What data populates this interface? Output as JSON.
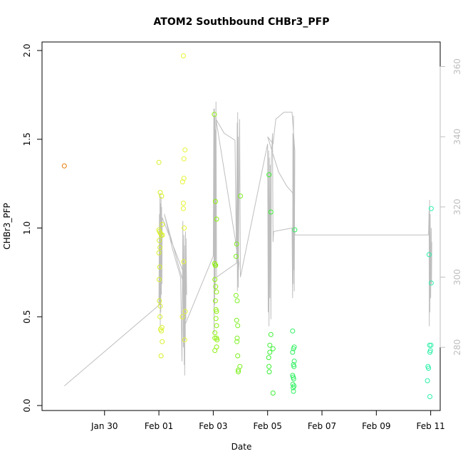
{
  "chart_data": {
    "type": "scatter",
    "title": "ATOM2 Southbound CHBr3_PFP",
    "xlabel": "Date",
    "ylabel": "CHBr3_PFP",
    "x_units": "days",
    "x_origin_label": "2017-01-28",
    "xlim": [
      -0.3,
      14.35
    ],
    "ylim": [
      0.0,
      2.0
    ],
    "y2lim": [
      262,
      367
    ],
    "x_ticks": [
      {
        "x": 2,
        "label": "Jan 30"
      },
      {
        "x": 4,
        "label": "Feb 01"
      },
      {
        "x": 6,
        "label": "Feb 03"
      },
      {
        "x": 8,
        "label": "Feb 05"
      },
      {
        "x": 10,
        "label": "Feb 07"
      },
      {
        "x": 12,
        "label": "Feb 09"
      },
      {
        "x": 14,
        "label": "Feb 11"
      }
    ],
    "y_ticks": [
      {
        "y": 0.0,
        "label": "0.0"
      },
      {
        "y": 0.5,
        "label": "0.5"
      },
      {
        "y": 1.0,
        "label": "1.0"
      },
      {
        "y": 1.5,
        "label": "1.5"
      },
      {
        "y": 2.0,
        "label": "2.0"
      }
    ],
    "y2_ticks": [
      {
        "y": 280,
        "label": "280"
      },
      {
        "y": 300,
        "label": "300"
      },
      {
        "y": 320,
        "label": "320"
      },
      {
        "y": 340,
        "label": "340"
      },
      {
        "y": 360,
        "label": "360"
      }
    ],
    "grid": false,
    "legend": "none",
    "points": [
      {
        "x": 0.52,
        "y": 1.35,
        "color": "#e87a00"
      },
      {
        "x": 4.0,
        "y": 1.37,
        "color": "#d8f028"
      },
      {
        "x": 4.05,
        "y": 1.2,
        "color": "#d8f028"
      },
      {
        "x": 4.1,
        "y": 1.18,
        "color": "#d8f028"
      },
      {
        "x": 4.12,
        "y": 1.02,
        "color": "#d8f028"
      },
      {
        "x": 4.0,
        "y": 0.99,
        "color": "#d8f028"
      },
      {
        "x": 4.02,
        "y": 0.98,
        "color": "#d8f028"
      },
      {
        "x": 4.06,
        "y": 0.97,
        "color": "#d8f028"
      },
      {
        "x": 4.09,
        "y": 0.96,
        "color": "#d8f028"
      },
      {
        "x": 4.13,
        "y": 0.96,
        "color": "#d8f028"
      },
      {
        "x": 4.01,
        "y": 0.93,
        "color": "#d8f028"
      },
      {
        "x": 4.04,
        "y": 0.89,
        "color": "#d8f028"
      },
      {
        "x": 4.0,
        "y": 0.86,
        "color": "#d8f028"
      },
      {
        "x": 4.03,
        "y": 0.78,
        "color": "#d8f028"
      },
      {
        "x": 4.01,
        "y": 0.71,
        "color": "#d8f028"
      },
      {
        "x": 4.02,
        "y": 0.59,
        "color": "#d8f028"
      },
      {
        "x": 4.05,
        "y": 0.56,
        "color": "#d8f028"
      },
      {
        "x": 4.04,
        "y": 0.5,
        "color": "#d8f028"
      },
      {
        "x": 4.11,
        "y": 0.44,
        "color": "#d8f028"
      },
      {
        "x": 4.06,
        "y": 0.43,
        "color": "#d8f028"
      },
      {
        "x": 4.09,
        "y": 0.42,
        "color": "#d8f028"
      },
      {
        "x": 4.12,
        "y": 0.36,
        "color": "#d8f028"
      },
      {
        "x": 4.08,
        "y": 0.28,
        "color": "#d8f028"
      },
      {
        "x": 4.9,
        "y": 1.97,
        "color": "#e6f432"
      },
      {
        "x": 4.96,
        "y": 1.44,
        "color": "#e6f432"
      },
      {
        "x": 4.92,
        "y": 1.39,
        "color": "#e6f432"
      },
      {
        "x": 4.92,
        "y": 1.28,
        "color": "#e6f432"
      },
      {
        "x": 4.87,
        "y": 1.26,
        "color": "#e6f432"
      },
      {
        "x": 4.9,
        "y": 1.14,
        "color": "#e6f432"
      },
      {
        "x": 4.9,
        "y": 1.11,
        "color": "#e6f432"
      },
      {
        "x": 4.93,
        "y": 1.0,
        "color": "#e6f432"
      },
      {
        "x": 4.91,
        "y": 0.81,
        "color": "#e6f432"
      },
      {
        "x": 4.97,
        "y": 0.53,
        "color": "#e6f432"
      },
      {
        "x": 4.86,
        "y": 0.5,
        "color": "#e6f432"
      },
      {
        "x": 4.95,
        "y": 0.37,
        "color": "#e6f432"
      },
      {
        "x": 6.04,
        "y": 1.64,
        "color": "#8cf00a"
      },
      {
        "x": 6.08,
        "y": 1.15,
        "color": "#8cf00a"
      },
      {
        "x": 6.12,
        "y": 1.05,
        "color": "#8cf00a"
      },
      {
        "x": 6.05,
        "y": 0.8,
        "color": "#8cf00a"
      },
      {
        "x": 6.07,
        "y": 0.79,
        "color": "#8cf00a"
      },
      {
        "x": 6.09,
        "y": 0.79,
        "color": "#8cf00a"
      },
      {
        "x": 6.06,
        "y": 0.71,
        "color": "#8cf00a"
      },
      {
        "x": 6.09,
        "y": 0.67,
        "color": "#8cf00a"
      },
      {
        "x": 6.12,
        "y": 0.64,
        "color": "#8cf00a"
      },
      {
        "x": 6.08,
        "y": 0.59,
        "color": "#8cf00a"
      },
      {
        "x": 6.1,
        "y": 0.54,
        "color": "#8cf00a"
      },
      {
        "x": 6.12,
        "y": 0.53,
        "color": "#8cf00a"
      },
      {
        "x": 6.1,
        "y": 0.49,
        "color": "#8cf00a"
      },
      {
        "x": 6.12,
        "y": 0.45,
        "color": "#8cf00a"
      },
      {
        "x": 6.06,
        "y": 0.41,
        "color": "#8cf00a"
      },
      {
        "x": 6.12,
        "y": 0.38,
        "color": "#8cf00a"
      },
      {
        "x": 6.06,
        "y": 0.38,
        "color": "#8cf00a"
      },
      {
        "x": 6.14,
        "y": 0.37,
        "color": "#8cf00a"
      },
      {
        "x": 6.12,
        "y": 0.33,
        "color": "#8cf00a"
      },
      {
        "x": 6.06,
        "y": 0.31,
        "color": "#8cf00a"
      },
      {
        "x": 7.0,
        "y": 1.18,
        "color": "#7cf020"
      },
      {
        "x": 6.86,
        "y": 0.91,
        "color": "#7cf020"
      },
      {
        "x": 6.84,
        "y": 0.84,
        "color": "#7cf020"
      },
      {
        "x": 6.84,
        "y": 0.62,
        "color": "#7cf020"
      },
      {
        "x": 6.88,
        "y": 0.59,
        "color": "#7cf020"
      },
      {
        "x": 6.86,
        "y": 0.48,
        "color": "#7cf020"
      },
      {
        "x": 6.9,
        "y": 0.45,
        "color": "#7cf020"
      },
      {
        "x": 6.88,
        "y": 0.38,
        "color": "#7cf020"
      },
      {
        "x": 6.87,
        "y": 0.36,
        "color": "#7cf020"
      },
      {
        "x": 6.9,
        "y": 0.28,
        "color": "#7cf020"
      },
      {
        "x": 6.98,
        "y": 0.22,
        "color": "#7cf020"
      },
      {
        "x": 6.92,
        "y": 0.2,
        "color": "#7cf020"
      },
      {
        "x": 6.92,
        "y": 0.19,
        "color": "#7cf020"
      },
      {
        "x": 8.05,
        "y": 1.3,
        "color": "#3cf034"
      },
      {
        "x": 8.12,
        "y": 1.09,
        "color": "#3cf034"
      },
      {
        "x": 8.12,
        "y": 0.4,
        "color": "#3cf034"
      },
      {
        "x": 8.08,
        "y": 0.34,
        "color": "#3cf034"
      },
      {
        "x": 8.2,
        "y": 0.32,
        "color": "#3cf034"
      },
      {
        "x": 8.08,
        "y": 0.3,
        "color": "#3cf034"
      },
      {
        "x": 8.04,
        "y": 0.27,
        "color": "#3cf034"
      },
      {
        "x": 8.05,
        "y": 0.22,
        "color": "#3cf034"
      },
      {
        "x": 8.06,
        "y": 0.19,
        "color": "#3cf034"
      },
      {
        "x": 8.2,
        "y": 0.07,
        "color": "#3cf034"
      },
      {
        "x": 9.0,
        "y": 0.99,
        "color": "#30f060"
      },
      {
        "x": 8.92,
        "y": 0.42,
        "color": "#30f060"
      },
      {
        "x": 8.98,
        "y": 0.33,
        "color": "#30f060"
      },
      {
        "x": 8.95,
        "y": 0.32,
        "color": "#30f060"
      },
      {
        "x": 8.92,
        "y": 0.3,
        "color": "#30f060"
      },
      {
        "x": 8.98,
        "y": 0.25,
        "color": "#30f060"
      },
      {
        "x": 8.95,
        "y": 0.23,
        "color": "#30f060"
      },
      {
        "x": 8.97,
        "y": 0.22,
        "color": "#30f060"
      },
      {
        "x": 8.92,
        "y": 0.17,
        "color": "#30f060"
      },
      {
        "x": 8.94,
        "y": 0.16,
        "color": "#30f060"
      },
      {
        "x": 8.96,
        "y": 0.15,
        "color": "#30f060"
      },
      {
        "x": 8.93,
        "y": 0.12,
        "color": "#30f060"
      },
      {
        "x": 8.97,
        "y": 0.11,
        "color": "#30f060"
      },
      {
        "x": 8.94,
        "y": 0.1,
        "color": "#30f060"
      },
      {
        "x": 8.95,
        "y": 0.08,
        "color": "#30f060"
      },
      {
        "x": 14.02,
        "y": 1.11,
        "color": "#2af0a8"
      },
      {
        "x": 13.94,
        "y": 0.85,
        "color": "#2af0a8"
      },
      {
        "x": 14.02,
        "y": 0.69,
        "color": "#2af0a8"
      },
      {
        "x": 13.96,
        "y": 0.34,
        "color": "#2af0a8"
      },
      {
        "x": 14.01,
        "y": 0.34,
        "color": "#2af0a8"
      },
      {
        "x": 13.99,
        "y": 0.31,
        "color": "#2af0a8"
      },
      {
        "x": 13.97,
        "y": 0.3,
        "color": "#2af0a8"
      },
      {
        "x": 13.9,
        "y": 0.22,
        "color": "#2af0a8"
      },
      {
        "x": 13.92,
        "y": 0.21,
        "color": "#2af0a8"
      },
      {
        "x": 13.88,
        "y": 0.14,
        "color": "#2af0a8"
      },
      {
        "x": 13.97,
        "y": 0.05,
        "color": "#2af0a8"
      }
    ],
    "secondary_line": {
      "color": "#bebebe",
      "points": [
        [
          0.52,
          269
        ],
        [
          4.0,
          292
        ],
        [
          4.02,
          318
        ],
        [
          4.03,
          292
        ],
        [
          4.04,
          324
        ],
        [
          4.05,
          286
        ],
        [
          4.06,
          321
        ],
        [
          4.07,
          290
        ],
        [
          4.08,
          323
        ],
        [
          4.09,
          295
        ],
        [
          4.1,
          320
        ],
        [
          4.11,
          298
        ],
        [
          4.12,
          317
        ],
        [
          4.92,
          301
        ],
        [
          4.93,
          275
        ],
        [
          4.94,
          309
        ],
        [
          4.95,
          272
        ],
        [
          4.96,
          304
        ],
        [
          4.97,
          282
        ],
        [
          4.98,
          313
        ],
        [
          4.99,
          288
        ],
        [
          5.0,
          311
        ],
        [
          5.02,
          295
        ],
        [
          4.2,
          318
        ],
        [
          4.5,
          308
        ],
        [
          4.8,
          300
        ],
        [
          4.85,
          276
        ],
        [
          4.88,
          316
        ],
        [
          4.9,
          280
        ],
        [
          4.92,
          312
        ],
        [
          4.94,
          286
        ],
        [
          6.0,
          306
        ],
        [
          6.02,
          348
        ],
        [
          6.03,
          284
        ],
        [
          6.04,
          348
        ],
        [
          6.05,
          292
        ],
        [
          6.06,
          346
        ],
        [
          6.07,
          296
        ],
        [
          6.08,
          342
        ],
        [
          6.09,
          304
        ],
        [
          6.1,
          350
        ],
        [
          6.12,
          300
        ],
        [
          6.86,
          304
        ],
        [
          6.88,
          344
        ],
        [
          6.89,
          296
        ],
        [
          6.9,
          347
        ],
        [
          6.91,
          300
        ],
        [
          6.92,
          340
        ],
        [
          6.93,
          302
        ],
        [
          6.95,
          304
        ],
        [
          6.1,
          345
        ],
        [
          6.4,
          341
        ],
        [
          6.8,
          339
        ],
        [
          6.85,
          308
        ],
        [
          6.88,
          342
        ],
        [
          6.92,
          297
        ],
        [
          6.97,
          345
        ],
        [
          7.0,
          300
        ],
        [
          8.0,
          338
        ],
        [
          8.02,
          290
        ],
        [
          8.04,
          336
        ],
        [
          8.05,
          286
        ],
        [
          8.06,
          334
        ],
        [
          8.08,
          294
        ],
        [
          8.1,
          332
        ],
        [
          8.12,
          288
        ],
        [
          8.14,
          334
        ],
        [
          8.18,
          341
        ],
        [
          8.2,
          310
        ],
        [
          8.22,
          313
        ],
        [
          8.9,
          314
        ],
        [
          8.92,
          294
        ],
        [
          8.93,
          341
        ],
        [
          8.94,
          298
        ],
        [
          8.95,
          346
        ],
        [
          8.96,
          302
        ],
        [
          8.97,
          338
        ],
        [
          8.98,
          296
        ],
        [
          9.0,
          336
        ],
        [
          8.9,
          347
        ],
        [
          8.6,
          347
        ],
        [
          8.3,
          345
        ],
        [
          8.2,
          338
        ],
        [
          8.0,
          340
        ],
        [
          8.4,
          330
        ],
        [
          8.7,
          326
        ],
        [
          8.92,
          324
        ],
        [
          9.0,
          312
        ],
        [
          13.92,
          312
        ],
        [
          13.94,
          319
        ],
        [
          13.95,
          286
        ],
        [
          13.96,
          322
        ],
        [
          13.97,
          290
        ],
        [
          13.98,
          318
        ],
        [
          14.0,
          294
        ],
        [
          14.02,
          314
        ],
        [
          14.03,
          298
        ],
        [
          14.04,
          310
        ]
      ]
    }
  }
}
